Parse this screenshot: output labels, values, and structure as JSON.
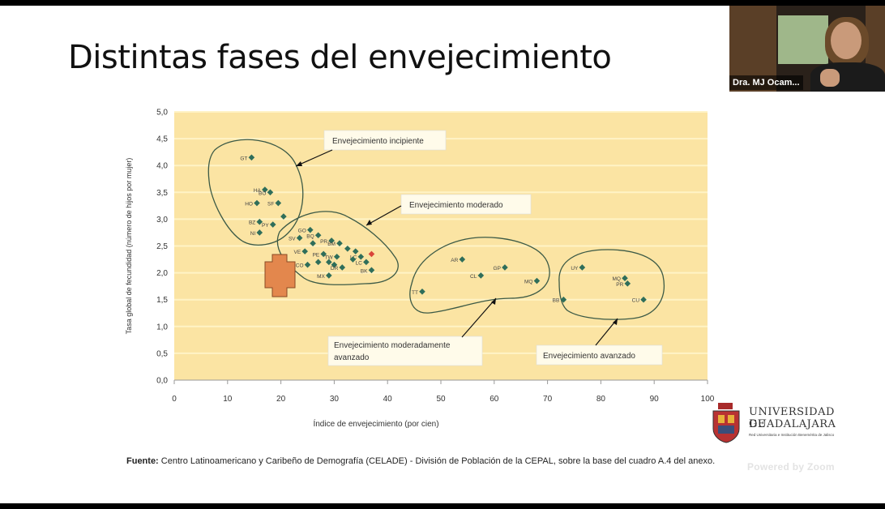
{
  "slide": {
    "title": "Distintas fases del envejecimiento"
  },
  "video": {
    "participant_name": "Dra. MJ Ocam..."
  },
  "chart_data": {
    "type": "scatter",
    "xlabel": "Índice de envejecimiento (por cien)",
    "ylabel": "Tasa global de fecundidad (número de hijos por mujer)",
    "xlim": [
      0,
      100
    ],
    "ylim": [
      0,
      5
    ],
    "x_ticks": [
      "0",
      "10",
      "20",
      "30",
      "40",
      "50",
      "60",
      "70",
      "80",
      "90",
      "100"
    ],
    "y_ticks": [
      "0,0",
      "0,5",
      "1,0",
      "1,5",
      "2,0",
      "2,5",
      "3,0",
      "3,5",
      "4,0",
      "4,5",
      "5,0"
    ],
    "grid": "horizontal",
    "background_color": "#fbe4a3",
    "grid_color": "#fff3c6",
    "marker_color": "#2f6e5a",
    "highlight_color": "#d9443a",
    "points": [
      {
        "label": "GT",
        "x": 14.5,
        "y": 4.15
      },
      {
        "label": "HA",
        "x": 17.0,
        "y": 3.55
      },
      {
        "label": "BO",
        "x": 18.0,
        "y": 3.5
      },
      {
        "label": "HO",
        "x": 15.5,
        "y": 3.3
      },
      {
        "label": "SF",
        "x": 19.5,
        "y": 3.3
      },
      {
        "label": "",
        "x": 20.5,
        "y": 3.05
      },
      {
        "label": "BZ",
        "x": 16.0,
        "y": 2.95
      },
      {
        "label": "PY",
        "x": 18.5,
        "y": 2.9
      },
      {
        "label": "NI",
        "x": 16.0,
        "y": 2.75
      },
      {
        "label": "SV",
        "x": 23.5,
        "y": 2.65
      },
      {
        "label": "GO",
        "x": 25.5,
        "y": 2.8
      },
      {
        "label": "BQ",
        "x": 27.0,
        "y": 2.7
      },
      {
        "label": "PR",
        "x": 29.5,
        "y": 2.6
      },
      {
        "label": "BM",
        "x": 31.0,
        "y": 2.55
      },
      {
        "label": "",
        "x": 26.0,
        "y": 2.55
      },
      {
        "label": "VE",
        "x": 24.5,
        "y": 2.4
      },
      {
        "label": "PE",
        "x": 28.0,
        "y": 2.35
      },
      {
        "label": "TW",
        "x": 30.5,
        "y": 2.3
      },
      {
        "label": "",
        "x": 32.5,
        "y": 2.45
      },
      {
        "label": "",
        "x": 34.0,
        "y": 2.4
      },
      {
        "label": "LC",
        "x": 35.0,
        "y": 2.3
      },
      {
        "label": "",
        "x": 37.0,
        "y": 2.35,
        "highlight": true
      },
      {
        "label": "",
        "x": 33.5,
        "y": 2.25
      },
      {
        "label": "",
        "x": 29.0,
        "y": 2.2
      },
      {
        "label": "",
        "x": 30.0,
        "y": 2.15
      },
      {
        "label": "LC",
        "x": 36.0,
        "y": 2.2
      },
      {
        "label": "",
        "x": 27.0,
        "y": 2.2
      },
      {
        "label": "CO",
        "x": 25.0,
        "y": 2.15
      },
      {
        "label": "DR",
        "x": 31.5,
        "y": 2.1
      },
      {
        "label": "BK",
        "x": 37.0,
        "y": 2.05
      },
      {
        "label": "MX",
        "x": 29.0,
        "y": 1.95
      },
      {
        "label": "AR",
        "x": 54.0,
        "y": 2.25
      },
      {
        "label": "CL",
        "x": 57.5,
        "y": 1.95
      },
      {
        "label": "GP",
        "x": 62.0,
        "y": 2.1
      },
      {
        "label": "MQ",
        "x": 68.0,
        "y": 1.85
      },
      {
        "label": "TT",
        "x": 46.5,
        "y": 1.65
      },
      {
        "label": "UY",
        "x": 76.5,
        "y": 2.1
      },
      {
        "label": "MQ",
        "x": 84.5,
        "y": 1.9
      },
      {
        "label": "PR",
        "x": 85.0,
        "y": 1.8
      },
      {
        "label": "BB",
        "x": 73.0,
        "y": 1.5
      },
      {
        "label": "CU",
        "x": 88.0,
        "y": 1.5
      }
    ],
    "annotations": [
      "Envejecimiento incipiente",
      "Envejecimiento moderado",
      "Envejecimiento moderadamente avanzado",
      "Envejecimiento avanzado"
    ]
  },
  "source": {
    "label": "Fuente:",
    "text": "Centro Latinoamericano y Caribeño de Demografía (CELADE) - División de Población de la CEPAL, sobre la base del cuadro A.4 del anexo."
  },
  "logo": {
    "line1": "UNIVERSIDAD DE",
    "line2": "GUADALAJARA",
    "sub": "Red Universitaria e Institución Benemérita de Jalisco"
  },
  "zoom": {
    "watermark": "Powered by Zoom"
  }
}
